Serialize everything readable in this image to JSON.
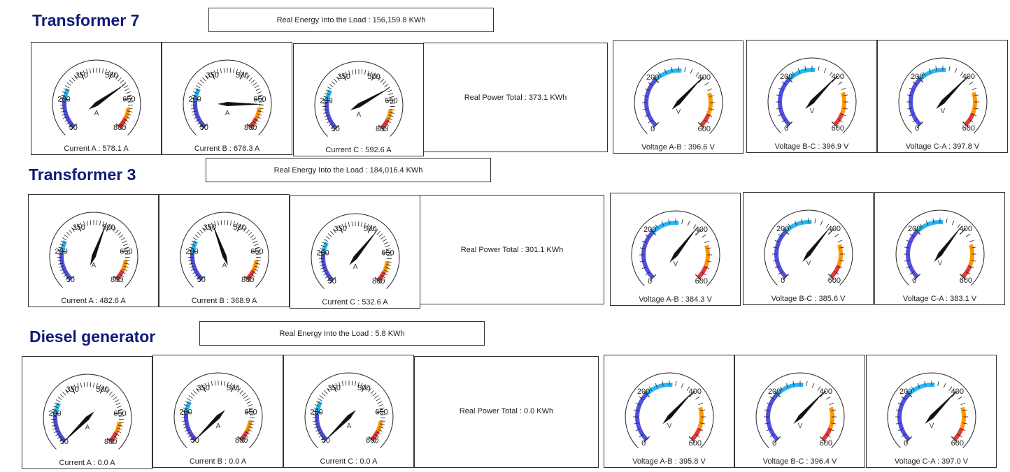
{
  "sections": [
    {
      "title": "Transformer 7",
      "energy_text": "Real Energy Into the Load : 156,159.8 KWh",
      "power_text": "Real Power Total : 373.1 KWh",
      "currents": [
        {
          "label": "Current A : 578.1 A",
          "value": 578.1
        },
        {
          "label": "Current B : 676.3 A",
          "value": 676.3
        },
        {
          "label": "Current C : 592.6 A",
          "value": 592.6
        }
      ],
      "voltages": [
        {
          "label": "Voltage A-B : 396.6 V",
          "value": 396.6
        },
        {
          "label": "Voltage B-C : 396.9 V",
          "value": 396.9
        },
        {
          "label": "Voltage C-A : 397.8 V",
          "value": 397.8
        }
      ]
    },
    {
      "title": "Transformer 3",
      "energy_text": "Real Energy Into the Load : 184,016.4 KWh",
      "power_text": "Real Power Total : 301.1 KWh",
      "currents": [
        {
          "label": "Current A : 482.6 A",
          "value": 482.6
        },
        {
          "label": "Current B : 368.9 A",
          "value": 368.9
        },
        {
          "label": "Current C : 532.6 A",
          "value": 532.6
        }
      ],
      "voltages": [
        {
          "label": "Voltage A-B : 384.3 V",
          "value": 384.3
        },
        {
          "label": "Voltage B-C : 385.6 V",
          "value": 385.6
        },
        {
          "label": "Voltage C-A : 383.1 V",
          "value": 383.1
        }
      ]
    },
    {
      "title": "Diesel generator",
      "energy_text": "Real Energy Into the Load : 5.8 KWh",
      "power_text": "Real Power Total : 0.0 KWh",
      "currents": [
        {
          "label": "Current A : 0.0 A",
          "value": 0.0
        },
        {
          "label": "Current B : 0.0 A",
          "value": 0.0
        },
        {
          "label": "Current C : 0.0 A",
          "value": 0.0
        }
      ],
      "voltages": [
        {
          "label": "Voltage A-B : 395.8 V",
          "value": 395.8
        },
        {
          "label": "Voltage B-C : 396.4 V",
          "value": 396.4
        },
        {
          "label": "Voltage C-A : 397.0 V",
          "value": 397.0
        }
      ]
    }
  ],
  "current_gauge": {
    "min": 50,
    "max": 800,
    "tick_labels": [
      "50",
      "200",
      "350",
      "500",
      "650",
      "800"
    ],
    "unit": "A",
    "band_colors": {
      "low": "#4f4fe0",
      "mid": "#29b6f6",
      "high": "#ff9800",
      "max": "#e53935"
    }
  },
  "voltage_gauge": {
    "min": 0,
    "max": 600,
    "tick_labels": [
      "0",
      "200",
      "400",
      "600"
    ],
    "unit": "V",
    "band_colors": {
      "low": "#4f4fe0",
      "mid": "#29b6f6",
      "high": "#ff9800",
      "max": "#e53935"
    }
  }
}
